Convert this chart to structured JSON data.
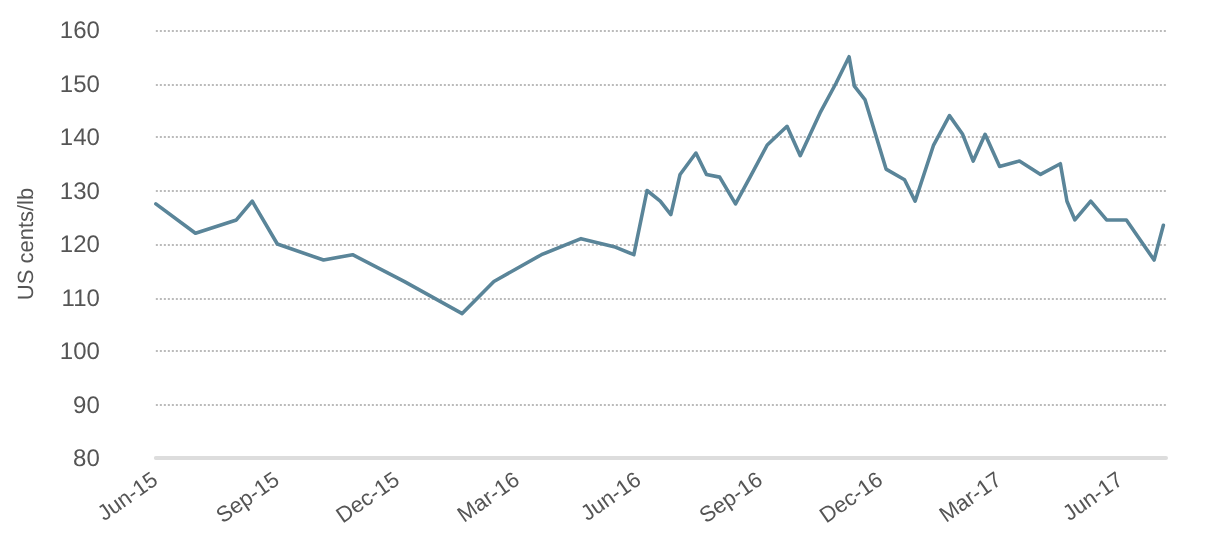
{
  "chart_data": {
    "type": "line",
    "ylabel": "US cents/lb",
    "grid": "y",
    "marker": "none",
    "line_style": "solid",
    "x": [
      "2015-06-01",
      "2015-07-01",
      "2015-08-01",
      "2015-08-13",
      "2015-09-01",
      "2015-10-06",
      "2015-10-28",
      "2015-12-06",
      "2016-01-19",
      "2016-02-12",
      "2016-03-19",
      "2016-04-18",
      "2016-05-13",
      "2016-05-28",
      "2016-06-07",
      "2016-06-17",
      "2016-06-25",
      "2016-07-02",
      "2016-07-14",
      "2016-07-22",
      "2016-08-01",
      "2016-08-13",
      "2016-08-24",
      "2016-09-06",
      "2016-09-21",
      "2016-10-01",
      "2016-10-16",
      "2016-10-28",
      "2016-11-07",
      "2016-11-11",
      "2016-11-19",
      "2016-11-27",
      "2016-12-05",
      "2016-12-19",
      "2016-12-27",
      "2017-01-10",
      "2017-01-22",
      "2017-02-01",
      "2017-02-09",
      "2017-02-18",
      "2017-03-01",
      "2017-03-16",
      "2017-04-01",
      "2017-04-16",
      "2017-04-21",
      "2017-04-27",
      "2017-05-09",
      "2017-05-21",
      "2017-06-05",
      "2017-06-26",
      "2017-07-03"
    ],
    "series": [
      {
        "color": "#5a8599",
        "values": [
          127.5,
          122,
          124.5,
          128,
          120,
          117,
          118,
          113,
          107,
          113,
          118,
          121,
          119.5,
          118,
          130,
          128,
          125.5,
          133,
          137,
          133,
          132.5,
          127.5,
          132.5,
          138.5,
          142,
          136.5,
          144.5,
          150,
          155,
          149.5,
          147,
          140.5,
          134,
          132,
          128,
          138.5,
          144,
          140.5,
          135.5,
          140.5,
          134.5,
          135.5,
          133,
          135,
          128,
          124.5,
          128,
          124.5,
          124.5,
          117,
          123.5
        ]
      }
    ],
    "xlim": [
      "2015-06-01",
      "2017-07-05"
    ],
    "xticks": [
      {
        "value": "2015-06-01",
        "label": "Jun-15"
      },
      {
        "value": "2015-09-01",
        "label": "Sep-15"
      },
      {
        "value": "2015-12-01",
        "label": "Dec-15"
      },
      {
        "value": "2016-03-01",
        "label": "Mar-16"
      },
      {
        "value": "2016-06-01",
        "label": "Jun-16"
      },
      {
        "value": "2016-09-01",
        "label": "Sep-16"
      },
      {
        "value": "2016-12-01",
        "label": "Dec-16"
      },
      {
        "value": "2017-03-01",
        "label": "Mar-17"
      },
      {
        "value": "2017-06-01",
        "label": "Jun-17"
      }
    ],
    "ylim": [
      80,
      160
    ],
    "yticks": [
      80,
      90,
      100,
      110,
      120,
      130,
      140,
      150,
      160
    ]
  }
}
